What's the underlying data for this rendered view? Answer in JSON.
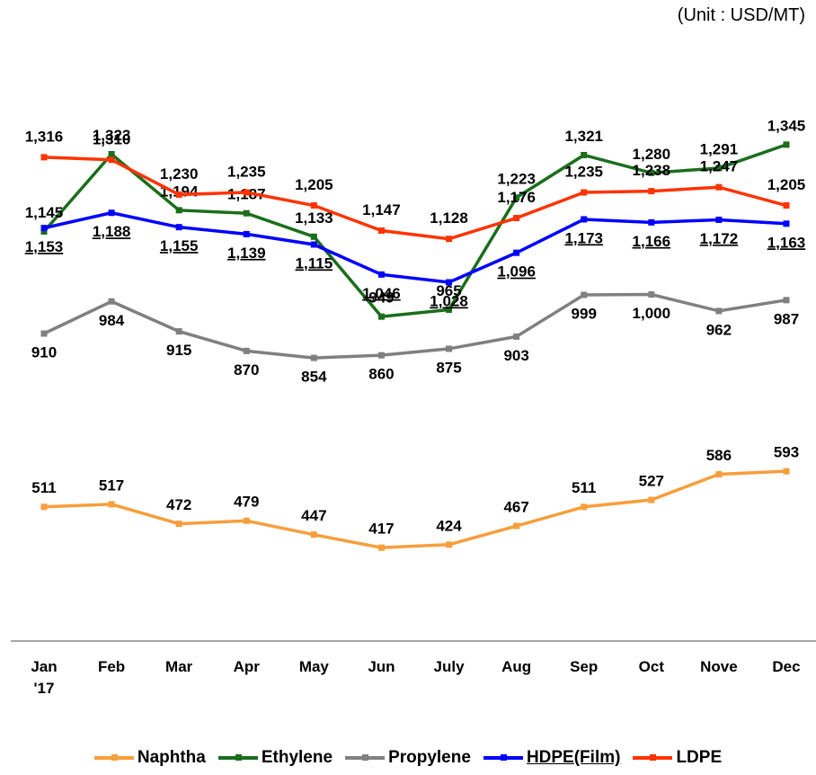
{
  "chart_data": {
    "type": "line",
    "unit_note": "(Unit : USD/MT)",
    "categories": [
      "Jan\n'17",
      "Feb",
      "Mar",
      "Apr",
      "May",
      "Jun",
      "July",
      "Aug",
      "Sep",
      "Oct",
      "Nove",
      "Dec"
    ],
    "ylim": [
      200,
      1500
    ],
    "series": [
      {
        "name": "Naphtha",
        "color": "#f79e3c",
        "values": [
          511,
          517,
          472,
          479,
          447,
          417,
          424,
          467,
          511,
          527,
          586,
          593
        ],
        "value_labels": [
          "511",
          "517",
          "472",
          "479",
          "447",
          "417",
          "424",
          "467",
          "511",
          "527",
          "586",
          "593"
        ]
      },
      {
        "name": "Ethylene",
        "color": "#1b6e1b",
        "values": [
          1145,
          1323,
          1194,
          1187,
          1133,
          949,
          965,
          1223,
          1321,
          1280,
          1291,
          1345
        ],
        "value_labels": [
          "1,145",
          "1,323",
          "1,194",
          "1,187",
          "1,133",
          "949",
          "965",
          "1,223",
          "1,321",
          "1,280",
          "1,291",
          "1,345"
        ]
      },
      {
        "name": "Propylene",
        "color": "#808080",
        "values": [
          910,
          984,
          915,
          870,
          854,
          860,
          875,
          903,
          999,
          1000,
          962,
          987
        ],
        "value_labels": [
          "910",
          "984",
          "915",
          "870",
          "854",
          "860",
          "875",
          "903",
          "999",
          "1,000",
          "962",
          "987"
        ]
      },
      {
        "name": "HDPE(Film)",
        "color": "#0000ff",
        "underline": true,
        "values": [
          1153,
          1188,
          1155,
          1139,
          1115,
          1046,
          1028,
          1096,
          1173,
          1166,
          1172,
          1163
        ],
        "value_labels": [
          "1,153",
          "1,188",
          "1,155",
          "1,139",
          "1,115",
          "1,046",
          "1,028",
          "1,096",
          "1,173",
          "1,166",
          "1,172",
          "1,163"
        ]
      },
      {
        "name": "LDPE",
        "color": "#ff3300",
        "values": [
          1316,
          1310,
          1230,
          1235,
          1205,
          1147,
          1128,
          1176,
          1235,
          1238,
          1247,
          1205
        ],
        "value_labels": [
          "1,316",
          "1,310",
          "1,230",
          "1,235",
          "1,205",
          "1,147",
          "1,128",
          "1,176",
          "1,235",
          "1,238",
          "1,247",
          "1,205"
        ]
      }
    ]
  }
}
